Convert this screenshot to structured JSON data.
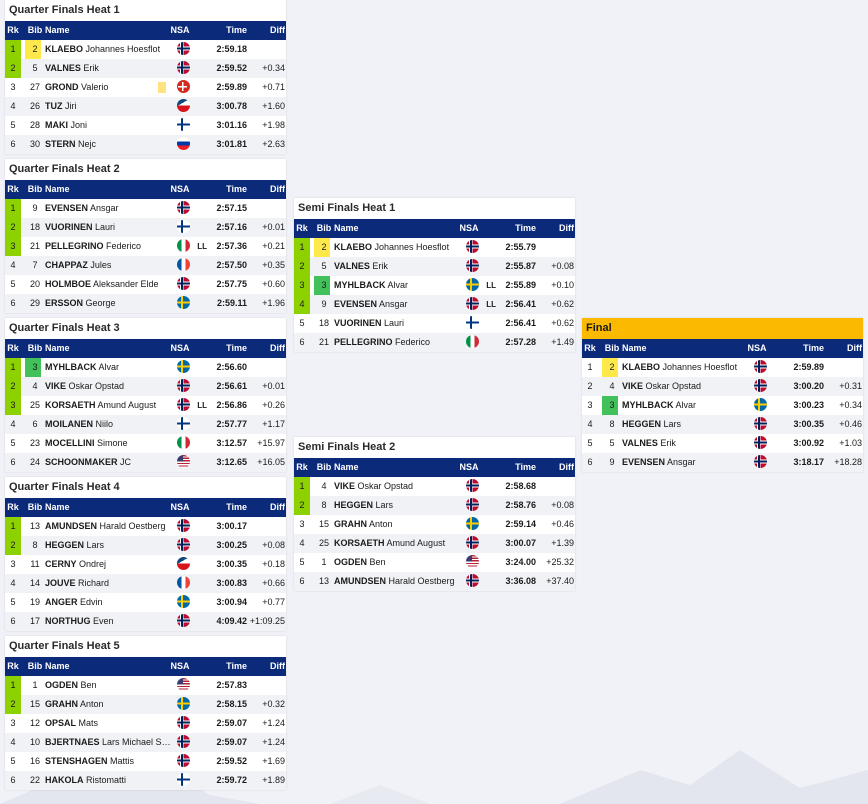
{
  "headers": {
    "rk": "Rk",
    "bib": "Bib",
    "name": "Name",
    "nsa": "NSA",
    "time": "Time",
    "diff": "Diff"
  },
  "colors": {
    "header": "#0c2a7a",
    "qualified": "#8ed100",
    "bib_yellow": "#ffe94a",
    "bib_green": "#42c15a",
    "final_title": "#fbb900"
  },
  "heats": [
    {
      "id": "qf1",
      "title": "Quarter Finals Heat 1",
      "rows": [
        {
          "rk": "1",
          "bib": "2",
          "surname": "KLAEBO",
          "first": "Johannes Hoesflot",
          "nsa": "NOR",
          "ll": "",
          "time": "2:59.18",
          "diff": "",
          "q": true,
          "bibc": "y"
        },
        {
          "rk": "2",
          "bib": "5",
          "surname": "VALNES",
          "first": "Erik",
          "nsa": "NOR",
          "ll": "",
          "time": "2:59.52",
          "diff": "+0.34",
          "q": true,
          "bibc": ""
        },
        {
          "rk": "3",
          "bib": "27",
          "surname": "GROND",
          "first": "Valerio",
          "nsa": "SUI",
          "ll": "",
          "time": "2:59.89",
          "diff": "+0.71",
          "q": false,
          "bibc": "",
          "mark": true
        },
        {
          "rk": "4",
          "bib": "26",
          "surname": "TUZ",
          "first": "Jiri",
          "nsa": "CZE",
          "ll": "",
          "time": "3:00.78",
          "diff": "+1.60",
          "q": false,
          "bibc": ""
        },
        {
          "rk": "5",
          "bib": "28",
          "surname": "MAKI",
          "first": "Joni",
          "nsa": "FIN",
          "ll": "",
          "time": "3:01.16",
          "diff": "+1.98",
          "q": false,
          "bibc": ""
        },
        {
          "rk": "6",
          "bib": "30",
          "surname": "STERN",
          "first": "Nejc",
          "nsa": "SLO",
          "ll": "",
          "time": "3:01.81",
          "diff": "+2.63",
          "q": false,
          "bibc": ""
        }
      ]
    },
    {
      "id": "qf2",
      "title": "Quarter Finals Heat 2",
      "rows": [
        {
          "rk": "1",
          "bib": "9",
          "surname": "EVENSEN",
          "first": "Ansgar",
          "nsa": "NOR",
          "ll": "",
          "time": "2:57.15",
          "diff": "",
          "q": true,
          "bibc": ""
        },
        {
          "rk": "2",
          "bib": "18",
          "surname": "VUORINEN",
          "first": "Lauri",
          "nsa": "FIN",
          "ll": "",
          "time": "2:57.16",
          "diff": "+0.01",
          "q": true,
          "bibc": ""
        },
        {
          "rk": "3",
          "bib": "21",
          "surname": "PELLEGRINO",
          "first": "Federico",
          "nsa": "ITA",
          "ll": "LL",
          "time": "2:57.36",
          "diff": "+0.21",
          "q": true,
          "bibc": ""
        },
        {
          "rk": "4",
          "bib": "7",
          "surname": "CHAPPAZ",
          "first": "Jules",
          "nsa": "FRA",
          "ll": "",
          "time": "2:57.50",
          "diff": "+0.35",
          "q": false,
          "bibc": ""
        },
        {
          "rk": "5",
          "bib": "20",
          "surname": "HOLMBOE",
          "first": "Aleksander Elde",
          "nsa": "NOR",
          "ll": "",
          "time": "2:57.75",
          "diff": "+0.60",
          "q": false,
          "bibc": ""
        },
        {
          "rk": "6",
          "bib": "29",
          "surname": "ERSSON",
          "first": "George",
          "nsa": "SWE",
          "ll": "",
          "time": "2:59.11",
          "diff": "+1.96",
          "q": false,
          "bibc": ""
        }
      ]
    },
    {
      "id": "qf3",
      "title": "Quarter Finals Heat 3",
      "rows": [
        {
          "rk": "1",
          "bib": "3",
          "surname": "MYHLBACK",
          "first": "Alvar",
          "nsa": "SWE",
          "ll": "",
          "time": "2:56.60",
          "diff": "",
          "q": true,
          "bibc": "g"
        },
        {
          "rk": "2",
          "bib": "4",
          "surname": "VIKE",
          "first": "Oskar Opstad",
          "nsa": "NOR",
          "ll": "",
          "time": "2:56.61",
          "diff": "+0.01",
          "q": true,
          "bibc": ""
        },
        {
          "rk": "3",
          "bib": "25",
          "surname": "KORSAETH",
          "first": "Amund August",
          "nsa": "NOR",
          "ll": "LL",
          "time": "2:56.86",
          "diff": "+0.26",
          "q": true,
          "bibc": ""
        },
        {
          "rk": "4",
          "bib": "6",
          "surname": "MOILANEN",
          "first": "Niilo",
          "nsa": "FIN",
          "ll": "",
          "time": "2:57.77",
          "diff": "+1.17",
          "q": false,
          "bibc": ""
        },
        {
          "rk": "5",
          "bib": "23",
          "surname": "MOCELLINI",
          "first": "Simone",
          "nsa": "ITA",
          "ll": "",
          "time": "3:12.57",
          "diff": "+15.97",
          "q": false,
          "bibc": ""
        },
        {
          "rk": "6",
          "bib": "24",
          "surname": "SCHOONMAKER",
          "first": "JC",
          "nsa": "USA",
          "ll": "",
          "time": "3:12.65",
          "diff": "+16.05",
          "q": false,
          "bibc": ""
        }
      ]
    },
    {
      "id": "qf4",
      "title": "Quarter Finals Heat 4",
      "rows": [
        {
          "rk": "1",
          "bib": "13",
          "surname": "AMUNDSEN",
          "first": "Harald Oestberg",
          "nsa": "NOR",
          "ll": "",
          "time": "3:00.17",
          "diff": "",
          "q": true,
          "bibc": ""
        },
        {
          "rk": "2",
          "bib": "8",
          "surname": "HEGGEN",
          "first": "Lars",
          "nsa": "NOR",
          "ll": "",
          "time": "3:00.25",
          "diff": "+0.08",
          "q": true,
          "bibc": ""
        },
        {
          "rk": "3",
          "bib": "11",
          "surname": "CERNY",
          "first": "Ondrej",
          "nsa": "CZE",
          "ll": "",
          "time": "3:00.35",
          "diff": "+0.18",
          "q": false,
          "bibc": ""
        },
        {
          "rk": "4",
          "bib": "14",
          "surname": "JOUVE",
          "first": "Richard",
          "nsa": "FRA",
          "ll": "",
          "time": "3:00.83",
          "diff": "+0.66",
          "q": false,
          "bibc": ""
        },
        {
          "rk": "5",
          "bib": "19",
          "surname": "ANGER",
          "first": "Edvin",
          "nsa": "SWE",
          "ll": "",
          "time": "3:00.94",
          "diff": "+0.77",
          "q": false,
          "bibc": ""
        },
        {
          "rk": "6",
          "bib": "17",
          "surname": "NORTHUG",
          "first": "Even",
          "nsa": "NOR",
          "ll": "",
          "time": "4:09.42",
          "diff": "+1:09.25",
          "q": false,
          "bibc": ""
        }
      ]
    },
    {
      "id": "qf5",
      "title": "Quarter Finals Heat 5",
      "rows": [
        {
          "rk": "1",
          "bib": "1",
          "surname": "OGDEN",
          "first": "Ben",
          "nsa": "USA",
          "ll": "",
          "time": "2:57.83",
          "diff": "",
          "q": true,
          "bibc": ""
        },
        {
          "rk": "2",
          "bib": "15",
          "surname": "GRAHN",
          "first": "Anton",
          "nsa": "SWE",
          "ll": "",
          "time": "2:58.15",
          "diff": "+0.32",
          "q": true,
          "bibc": ""
        },
        {
          "rk": "3",
          "bib": "12",
          "surname": "OPSAL",
          "first": "Mats",
          "nsa": "NOR",
          "ll": "",
          "time": "2:59.07",
          "diff": "+1.24",
          "q": false,
          "bibc": ""
        },
        {
          "rk": "4",
          "bib": "10",
          "surname": "BJERTNAES",
          "first": "Lars Michael Saab",
          "nsa": "NOR",
          "ll": "",
          "time": "2:59.07",
          "diff": "+1.24",
          "q": false,
          "bibc": ""
        },
        {
          "rk": "5",
          "bib": "16",
          "surname": "STENSHAGEN",
          "first": "Mattis",
          "nsa": "NOR",
          "ll": "",
          "time": "2:59.52",
          "diff": "+1.69",
          "q": false,
          "bibc": ""
        },
        {
          "rk": "6",
          "bib": "22",
          "surname": "HAKOLA",
          "first": "Ristomatti",
          "nsa": "FIN",
          "ll": "",
          "time": "2:59.72",
          "diff": "+1.89",
          "q": false,
          "bibc": ""
        }
      ]
    },
    {
      "id": "sf1",
      "title": "Semi Finals Heat 1",
      "rows": [
        {
          "rk": "1",
          "bib": "2",
          "surname": "KLAEBO",
          "first": "Johannes Hoesflot",
          "nsa": "NOR",
          "ll": "",
          "time": "2:55.79",
          "diff": "",
          "q": true,
          "bibc": "y"
        },
        {
          "rk": "2",
          "bib": "5",
          "surname": "VALNES",
          "first": "Erik",
          "nsa": "NOR",
          "ll": "",
          "time": "2:55.87",
          "diff": "+0.08",
          "q": true,
          "bibc": ""
        },
        {
          "rk": "3",
          "bib": "3",
          "surname": "MYHLBACK",
          "first": "Alvar",
          "nsa": "SWE",
          "ll": "LL",
          "time": "2:55.89",
          "diff": "+0.10",
          "q": true,
          "bibc": "g"
        },
        {
          "rk": "4",
          "bib": "9",
          "surname": "EVENSEN",
          "first": "Ansgar",
          "nsa": "NOR",
          "ll": "LL",
          "time": "2:56.41",
          "diff": "+0.62",
          "q": true,
          "bibc": ""
        },
        {
          "rk": "5",
          "bib": "18",
          "surname": "VUORINEN",
          "first": "Lauri",
          "nsa": "FIN",
          "ll": "",
          "time": "2:56.41",
          "diff": "+0.62",
          "q": false,
          "bibc": ""
        },
        {
          "rk": "6",
          "bib": "21",
          "surname": "PELLEGRINO",
          "first": "Federico",
          "nsa": "ITA",
          "ll": "",
          "time": "2:57.28",
          "diff": "+1.49",
          "q": false,
          "bibc": ""
        }
      ]
    },
    {
      "id": "sf2",
      "title": "Semi Finals Heat 2",
      "rows": [
        {
          "rk": "1",
          "bib": "4",
          "surname": "VIKE",
          "first": "Oskar Opstad",
          "nsa": "NOR",
          "ll": "",
          "time": "2:58.68",
          "diff": "",
          "q": true,
          "bibc": ""
        },
        {
          "rk": "2",
          "bib": "8",
          "surname": "HEGGEN",
          "first": "Lars",
          "nsa": "NOR",
          "ll": "",
          "time": "2:58.76",
          "diff": "+0.08",
          "q": true,
          "bibc": ""
        },
        {
          "rk": "3",
          "bib": "15",
          "surname": "GRAHN",
          "first": "Anton",
          "nsa": "SWE",
          "ll": "",
          "time": "2:59.14",
          "diff": "+0.46",
          "q": false,
          "bibc": ""
        },
        {
          "rk": "4",
          "bib": "25",
          "surname": "KORSAETH",
          "first": "Amund August",
          "nsa": "NOR",
          "ll": "",
          "time": "3:00.07",
          "diff": "+1.39",
          "q": false,
          "bibc": ""
        },
        {
          "rk": "5",
          "bib": "1",
          "surname": "OGDEN",
          "first": "Ben",
          "nsa": "USA",
          "ll": "",
          "time": "3:24.00",
          "diff": "+25.32",
          "q": false,
          "bibc": ""
        },
        {
          "rk": "6",
          "bib": "13",
          "surname": "AMUNDSEN",
          "first": "Harald Oestberg",
          "nsa": "NOR",
          "ll": "",
          "time": "3:36.08",
          "diff": "+37.40",
          "q": false,
          "bibc": ""
        }
      ]
    },
    {
      "id": "final",
      "title": "Final",
      "rows": [
        {
          "rk": "1",
          "bib": "2",
          "surname": "KLAEBO",
          "first": "Johannes Hoesflot",
          "nsa": "NOR",
          "ll": "",
          "time": "2:59.89",
          "diff": "",
          "q": false,
          "bibc": "y"
        },
        {
          "rk": "2",
          "bib": "4",
          "surname": "VIKE",
          "first": "Oskar Opstad",
          "nsa": "NOR",
          "ll": "",
          "time": "3:00.20",
          "diff": "+0.31",
          "q": false,
          "bibc": ""
        },
        {
          "rk": "3",
          "bib": "3",
          "surname": "MYHLBACK",
          "first": "Alvar",
          "nsa": "SWE",
          "ll": "",
          "time": "3:00.23",
          "diff": "+0.34",
          "q": false,
          "bibc": "g"
        },
        {
          "rk": "4",
          "bib": "8",
          "surname": "HEGGEN",
          "first": "Lars",
          "nsa": "NOR",
          "ll": "",
          "time": "3:00.35",
          "diff": "+0.46",
          "q": false,
          "bibc": ""
        },
        {
          "rk": "5",
          "bib": "5",
          "surname": "VALNES",
          "first": "Erik",
          "nsa": "NOR",
          "ll": "",
          "time": "3:00.92",
          "diff": "+1.03",
          "q": false,
          "bibc": ""
        },
        {
          "rk": "6",
          "bib": "9",
          "surname": "EVENSEN",
          "first": "Ansgar",
          "nsa": "NOR",
          "ll": "",
          "time": "3:18.17",
          "diff": "+18.28",
          "q": false,
          "bibc": ""
        }
      ]
    }
  ]
}
